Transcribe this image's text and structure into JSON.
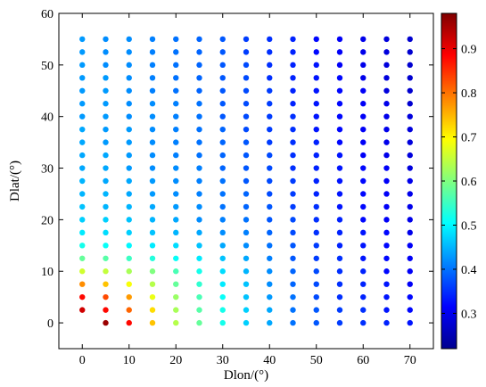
{
  "chart_data": {
    "type": "scatter",
    "title": "",
    "xlabel": "Dlon/(°)",
    "ylabel": "Dlat/(°)",
    "xlim": [
      -5,
      75
    ],
    "ylim": [
      -5,
      60
    ],
    "xticks": [
      0,
      10,
      20,
      30,
      40,
      50,
      60,
      70
    ],
    "yticks": [
      0,
      10,
      20,
      30,
      40,
      50,
      60
    ],
    "colorbar": {
      "colormap": "jet",
      "range": [
        0.22,
        0.98
      ],
      "ticks": [
        0.3,
        0.4,
        0.5,
        0.6,
        0.7,
        0.8,
        0.9
      ],
      "tick_labels": [
        "0.3",
        "0.4",
        "0.5",
        "0.6",
        "0.7",
        "0.8",
        "0.9"
      ]
    },
    "grid": false,
    "legend": "none",
    "x": [
      0,
      5,
      10,
      15,
      20,
      25,
      30,
      35,
      40,
      45,
      50,
      55,
      60,
      65,
      70
    ],
    "y": [
      0,
      2.5,
      5,
      7.5,
      10,
      12.5,
      15,
      17.5,
      20,
      22.5,
      25,
      27.5,
      30,
      32.5,
      35,
      37.5,
      40,
      42.5,
      45,
      47.5,
      50,
      52.5,
      55
    ],
    "values": [
      [
        null,
        0.96,
        0.88,
        0.74,
        0.64,
        0.58,
        0.52,
        0.47,
        0.44,
        0.4,
        0.38,
        0.36,
        0.35,
        0.34,
        0.33
      ],
      [
        0.92,
        0.88,
        0.81,
        0.72,
        0.63,
        0.57,
        0.52,
        0.47,
        0.44,
        0.4,
        0.38,
        0.36,
        0.35,
        0.33,
        0.32
      ],
      [
        0.88,
        0.83,
        0.77,
        0.68,
        0.62,
        0.56,
        0.51,
        0.46,
        0.43,
        0.4,
        0.37,
        0.35,
        0.34,
        0.33,
        0.32
      ],
      [
        0.78,
        0.74,
        0.69,
        0.64,
        0.58,
        0.54,
        0.49,
        0.46,
        0.42,
        0.39,
        0.37,
        0.35,
        0.34,
        0.33,
        0.31
      ],
      [
        0.66,
        0.65,
        0.63,
        0.6,
        0.56,
        0.52,
        0.48,
        0.45,
        0.42,
        0.39,
        0.37,
        0.35,
        0.34,
        0.32,
        0.31
      ],
      [
        0.58,
        0.57,
        0.55,
        0.53,
        0.51,
        0.49,
        0.46,
        0.44,
        0.41,
        0.38,
        0.36,
        0.35,
        0.33,
        0.32,
        0.31
      ],
      [
        0.52,
        0.51,
        0.5,
        0.49,
        0.48,
        0.46,
        0.44,
        0.42,
        0.4,
        0.38,
        0.36,
        0.34,
        0.33,
        0.32,
        0.31
      ],
      [
        0.49,
        0.48,
        0.47,
        0.46,
        0.45,
        0.44,
        0.42,
        0.41,
        0.39,
        0.37,
        0.35,
        0.34,
        0.33,
        0.32,
        0.3
      ],
      [
        0.47,
        0.47,
        0.46,
        0.45,
        0.44,
        0.42,
        0.41,
        0.4,
        0.38,
        0.37,
        0.35,
        0.34,
        0.32,
        0.31,
        0.3
      ],
      [
        0.46,
        0.45,
        0.45,
        0.44,
        0.43,
        0.42,
        0.4,
        0.39,
        0.38,
        0.36,
        0.35,
        0.33,
        0.32,
        0.31,
        0.3
      ],
      [
        0.45,
        0.45,
        0.44,
        0.43,
        0.42,
        0.41,
        0.4,
        0.39,
        0.37,
        0.36,
        0.34,
        0.33,
        0.32,
        0.31,
        0.3
      ],
      [
        0.45,
        0.44,
        0.44,
        0.43,
        0.42,
        0.41,
        0.4,
        0.38,
        0.37,
        0.36,
        0.34,
        0.33,
        0.32,
        0.31,
        0.3
      ],
      [
        0.44,
        0.44,
        0.43,
        0.42,
        0.42,
        0.41,
        0.39,
        0.38,
        0.37,
        0.35,
        0.34,
        0.33,
        0.32,
        0.31,
        0.29
      ],
      [
        0.44,
        0.44,
        0.43,
        0.42,
        0.41,
        0.4,
        0.39,
        0.38,
        0.37,
        0.35,
        0.34,
        0.33,
        0.31,
        0.3,
        0.29
      ],
      [
        0.44,
        0.43,
        0.43,
        0.42,
        0.41,
        0.4,
        0.39,
        0.38,
        0.36,
        0.35,
        0.34,
        0.32,
        0.31,
        0.3,
        0.29
      ],
      [
        0.44,
        0.43,
        0.43,
        0.42,
        0.41,
        0.4,
        0.39,
        0.37,
        0.36,
        0.35,
        0.33,
        0.32,
        0.31,
        0.3,
        0.29
      ],
      [
        0.43,
        0.43,
        0.42,
        0.42,
        0.41,
        0.4,
        0.38,
        0.37,
        0.36,
        0.35,
        0.33,
        0.32,
        0.31,
        0.3,
        0.29
      ],
      [
        0.43,
        0.43,
        0.42,
        0.42,
        0.41,
        0.4,
        0.38,
        0.37,
        0.36,
        0.34,
        0.33,
        0.32,
        0.31,
        0.3,
        0.28
      ],
      [
        0.43,
        0.43,
        0.42,
        0.41,
        0.4,
        0.39,
        0.38,
        0.37,
        0.36,
        0.34,
        0.33,
        0.32,
        0.31,
        0.29,
        0.28
      ],
      [
        0.43,
        0.43,
        0.42,
        0.41,
        0.4,
        0.39,
        0.38,
        0.37,
        0.35,
        0.34,
        0.33,
        0.32,
        0.3,
        0.29,
        0.28
      ],
      [
        0.43,
        0.42,
        0.42,
        0.41,
        0.4,
        0.39,
        0.38,
        0.37,
        0.35,
        0.34,
        0.33,
        0.31,
        0.3,
        0.29,
        0.28
      ],
      [
        0.43,
        0.42,
        0.42,
        0.41,
        0.4,
        0.39,
        0.38,
        0.36,
        0.35,
        0.34,
        0.32,
        0.31,
        0.3,
        0.29,
        0.28
      ],
      [
        0.43,
        0.42,
        0.42,
        0.41,
        0.4,
        0.39,
        0.38,
        0.36,
        0.35,
        0.34,
        0.32,
        0.31,
        0.3,
        0.29,
        0.28
      ]
    ]
  }
}
